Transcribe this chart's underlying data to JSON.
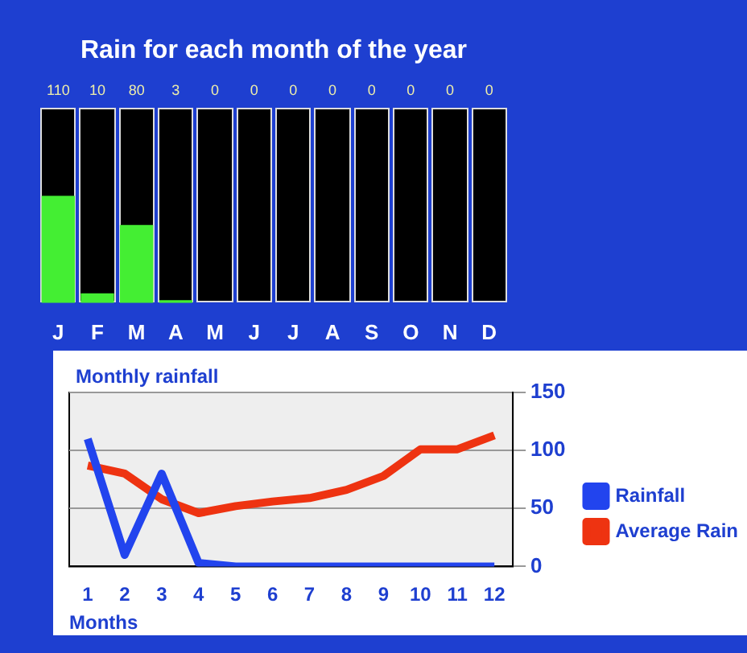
{
  "chart_data": [
    {
      "type": "bar",
      "title": "Rain for each month of the year",
      "categories": [
        "J",
        "F",
        "M",
        "A",
        "M",
        "J",
        "J",
        "A",
        "S",
        "O",
        "N",
        "D"
      ],
      "values": [
        110,
        10,
        80,
        3,
        0,
        0,
        0,
        0,
        0,
        0,
        0,
        0
      ],
      "value_labels": [
        "110",
        "10",
        "80",
        "3",
        "0",
        "0",
        "0",
        "0",
        "0",
        "0",
        "0",
        "0"
      ],
      "color": "#44ee33",
      "tick_labels": "x"
    },
    {
      "type": "line",
      "ylabel": "Monthly rainfall",
      "xlabel": "Months",
      "x": [
        1,
        2,
        3,
        4,
        5,
        6,
        7,
        8,
        9,
        10,
        11,
        12
      ],
      "xlim": [
        0.5,
        12.5
      ],
      "xticks": [
        1,
        2,
        3,
        4,
        5,
        6,
        7,
        8,
        9,
        10,
        11,
        12
      ],
      "ylim": [
        0,
        150
      ],
      "yticks": [
        0,
        50,
        100,
        150
      ],
      "grid": "y",
      "legend": "right",
      "marker": "none",
      "series": [
        {
          "name": "Rainfall",
          "color": "#2244ee",
          "values": [
            110,
            10,
            80,
            3,
            0,
            0,
            0,
            0,
            0,
            0,
            0,
            0
          ]
        },
        {
          "name": "Average Rain",
          "color": "#ee3311",
          "values": [
            87,
            80,
            58,
            46,
            52,
            56,
            59,
            66,
            78,
            101,
            101,
            113
          ]
        }
      ]
    }
  ]
}
